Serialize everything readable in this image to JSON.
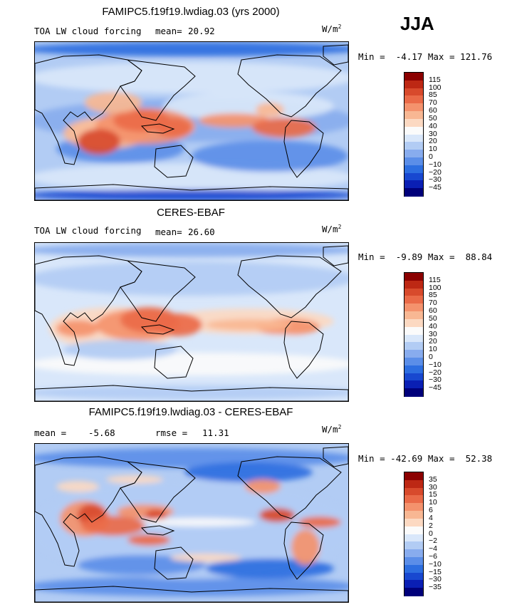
{
  "season": "JJA",
  "colors": {
    "abs_scale": [
      "#00007a",
      "#0a1fb4",
      "#1848d0",
      "#2d6ee0",
      "#5b8ee8",
      "#88acee",
      "#b2ccf4",
      "#d9e7fa",
      "#fbfbfb",
      "#fcd9c2",
      "#f8b793",
      "#f4926d",
      "#ea6a48",
      "#d84a2c",
      "#bd2814",
      "#8b0000"
    ],
    "diff_scale": [
      "#00007a",
      "#0a1fb4",
      "#1848d0",
      "#2d6ee0",
      "#5b8ee8",
      "#88acee",
      "#b2ccf4",
      "#d9e7fa",
      "#fbfbfb",
      "#fcd9c2",
      "#f8b793",
      "#f4926d",
      "#ea6a48",
      "#d84a2c",
      "#bd2814",
      "#8b0000"
    ]
  },
  "panels": [
    {
      "id": "model",
      "title": "FAMIPC5.f19f19.lwdiag.03 (yrs 2000)",
      "left_label": "TOA LW cloud forcing",
      "mean_label": "mean=",
      "mean_value": "20.92",
      "units": "W/m",
      "units_exp": "2",
      "min_label": "Min =",
      "min_value": "-4.17",
      "max_label": "Max =",
      "max_value": "121.76",
      "colorbar_labels": [
        "115",
        "100",
        "85",
        "70",
        "60",
        "50",
        "40",
        "30",
        "20",
        "10",
        "0",
        "−10",
        "−20",
        "−30",
        "−45"
      ]
    },
    {
      "id": "obs",
      "title": "CERES-EBAF",
      "left_label": "TOA LW cloud forcing",
      "mean_label": "mean=",
      "mean_value": "26.60",
      "units": "W/m",
      "units_exp": "2",
      "min_label": "Min =",
      "min_value": "-9.89",
      "max_label": "Max =",
      "max_value": "88.84",
      "colorbar_labels": [
        "115",
        "100",
        "85",
        "70",
        "60",
        "50",
        "40",
        "30",
        "20",
        "10",
        "0",
        "−10",
        "−20",
        "−30",
        "−45"
      ]
    },
    {
      "id": "diff",
      "title": "FAMIPC5.f19f19.lwdiag.03 - CERES-EBAF",
      "left_label": "mean =",
      "mean_label": "",
      "mean_value": "-5.68",
      "rmse_label": "rmse =",
      "rmse_value": "11.31",
      "units": "W/m",
      "units_exp": "2",
      "min_label": "Min =",
      "min_value": "-42.69",
      "max_label": "Max =",
      "max_value": "52.38",
      "colorbar_labels": [
        "35",
        "30",
        "15",
        "10",
        "6",
        "4",
        "2",
        "0",
        "−2",
        "−4",
        "−6",
        "−10",
        "−15",
        "−30",
        "−35"
      ]
    }
  ]
}
